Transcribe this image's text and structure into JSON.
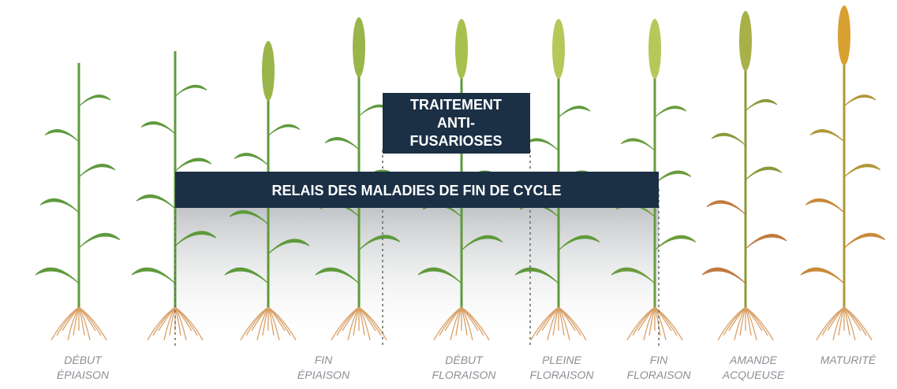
{
  "treatment_box": {
    "lines": [
      "TRAITEMENT",
      "ANTI-",
      "FUSARIOSES"
    ]
  },
  "banner": {
    "text": "RELAIS DES MALADIES DE FIN DE CYCLE"
  },
  "stages": [
    {
      "lines": [
        "DÉBUT",
        "ÉPIAISON"
      ]
    },
    {
      "lines": [
        "FIN",
        "ÉPIAISON"
      ]
    },
    {
      "lines": [
        "DÉBUT",
        "FLORAISON"
      ]
    },
    {
      "lines": [
        "PLEINE",
        "FLORAISON"
      ]
    },
    {
      "lines": [
        "FIN",
        "FLORAISON"
      ]
    },
    {
      "lines": [
        "AMANDE",
        "ACQUEUSE"
      ]
    },
    {
      "lines": [
        "MATURITÉ"
      ]
    }
  ]
}
